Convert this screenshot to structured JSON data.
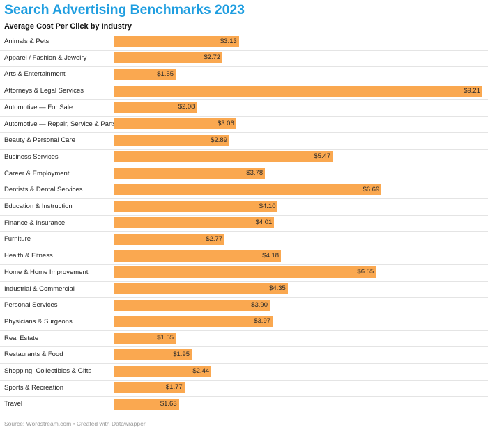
{
  "title": "Search Advertising Benchmarks 2023",
  "subtitle": "Average Cost Per Click by Industry",
  "source": "Source: Wordstream.com • Created with Datawrapper",
  "colors": {
    "bar": "#faa850",
    "title": "#1f9ee0",
    "divider": "#e4e4e4"
  },
  "chart_data": {
    "type": "bar",
    "orientation": "horizontal",
    "title": "Search Advertising Benchmarks 2023",
    "subtitle": "Average Cost Per Click by Industry",
    "xlim": [
      0,
      9.21
    ],
    "grid": false,
    "categories": [
      "Animals & Pets",
      "Apparel / Fashion & Jewelry",
      "Arts & Entertainment",
      "Attorneys & Legal Services",
      "Automotive — For Sale",
      "Automotive — Repair, Service & Parts",
      "Beauty & Personal Care",
      "Business Services",
      "Career & Employment",
      "Dentists & Dental Services",
      "Education & Instruction",
      "Finance & Insurance",
      "Furniture",
      "Health & Fitness",
      "Home & Home Improvement",
      "Industrial & Commercial",
      "Personal Services",
      "Physicians & Surgeons",
      "Real Estate",
      "Restaurants & Food",
      "Shopping, Collectibles & Gifts",
      "Sports & Recreation",
      "Travel"
    ],
    "values": [
      3.13,
      2.72,
      1.55,
      9.21,
      2.08,
      3.06,
      2.89,
      5.47,
      3.78,
      6.69,
      4.1,
      4.01,
      2.77,
      4.18,
      6.55,
      4.35,
      3.9,
      3.97,
      1.55,
      1.95,
      2.44,
      1.77,
      1.63
    ],
    "value_labels": [
      "$3.13",
      "$2.72",
      "$1.55",
      "$9.21",
      "$2.08",
      "$3.06",
      "$2.89",
      "$5.47",
      "$3.78",
      "$6.69",
      "$4.10",
      "$4.01",
      "$2.77",
      "$4.18",
      "$6.55",
      "$4.35",
      "$3.90",
      "$3.97",
      "$1.55",
      "$1.95",
      "$2.44",
      "$1.77",
      "$1.63"
    ]
  }
}
